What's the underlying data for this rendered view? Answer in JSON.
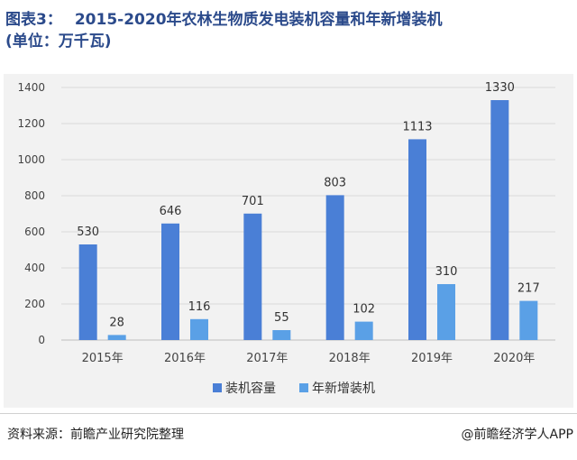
{
  "header": {
    "prefix": "图表3：",
    "title": "2015-2020年农林生物质发电装机容量和年新增装机",
    "unit": "(单位：万千瓦)"
  },
  "chart_data": {
    "type": "bar",
    "categories": [
      "2015年",
      "2016年",
      "2017年",
      "2018年",
      "2019年",
      "2020年"
    ],
    "series": [
      {
        "name": "装机容量",
        "values": [
          530,
          646,
          701,
          803,
          1113,
          1330
        ],
        "color": "#4a7fd6"
      },
      {
        "name": "年新增装机",
        "values": [
          28,
          116,
          55,
          102,
          310,
          217
        ],
        "color": "#5aa0e6"
      }
    ],
    "ylim": [
      0,
      1400
    ],
    "yticks": [
      0,
      200,
      400,
      600,
      800,
      1000,
      1200,
      1400
    ],
    "grid": true,
    "legend": "bottom"
  },
  "footer": {
    "source": "资料来源：前瞻产业研究院整理",
    "brand": "@前瞻经济学人APP"
  }
}
